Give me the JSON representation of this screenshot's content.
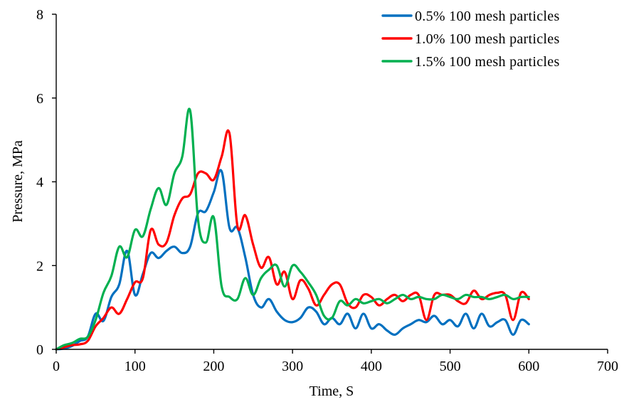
{
  "chart_data": {
    "type": "line",
    "title": "",
    "xlabel": "Time,  S",
    "ylabel": "Pressure, MPa",
    "xlim": [
      0,
      700
    ],
    "ylim": [
      0,
      8
    ],
    "xticks": [
      0,
      100,
      200,
      300,
      400,
      500,
      600,
      700
    ],
    "yticks": [
      0,
      2,
      4,
      6,
      8
    ],
    "grid": false,
    "legend_position": "top-right",
    "series": [
      {
        "name": "0.5% 100 mesh particles",
        "color": "#0070C0",
        "x": [
          0,
          10,
          20,
          30,
          40,
          50,
          60,
          70,
          80,
          90,
          100,
          110,
          120,
          130,
          140,
          150,
          160,
          170,
          180,
          190,
          200,
          210,
          220,
          230,
          240,
          250,
          260,
          270,
          280,
          290,
          300,
          310,
          320,
          330,
          340,
          350,
          360,
          370,
          380,
          390,
          400,
          410,
          420,
          430,
          440,
          450,
          460,
          470,
          480,
          490,
          500,
          510,
          520,
          530,
          540,
          550,
          560,
          570,
          580,
          590,
          600
        ],
        "y": [
          0.0,
          0.02,
          0.08,
          0.2,
          0.3,
          0.85,
          0.68,
          1.25,
          1.55,
          2.35,
          1.3,
          1.8,
          2.3,
          2.18,
          2.35,
          2.45,
          2.3,
          2.45,
          3.25,
          3.3,
          3.75,
          4.25,
          2.9,
          2.9,
          2.2,
          1.3,
          1.0,
          1.2,
          0.9,
          0.7,
          0.65,
          0.75,
          1.0,
          0.9,
          0.6,
          0.75,
          0.6,
          0.85,
          0.5,
          0.85,
          0.5,
          0.6,
          0.45,
          0.35,
          0.5,
          0.6,
          0.7,
          0.65,
          0.8,
          0.6,
          0.7,
          0.55,
          0.85,
          0.5,
          0.85,
          0.55,
          0.65,
          0.7,
          0.35,
          0.7,
          0.6
        ]
      },
      {
        "name": "1.0% 100 mesh particles",
        "color": "#FF0000",
        "x": [
          0,
          10,
          20,
          30,
          40,
          50,
          60,
          70,
          80,
          90,
          100,
          110,
          120,
          130,
          140,
          150,
          160,
          170,
          180,
          190,
          200,
          210,
          220,
          230,
          240,
          250,
          260,
          270,
          280,
          290,
          300,
          310,
          320,
          330,
          340,
          350,
          360,
          370,
          380,
          390,
          400,
          410,
          420,
          430,
          440,
          450,
          460,
          470,
          480,
          490,
          500,
          510,
          520,
          530,
          540,
          550,
          560,
          570,
          580,
          590,
          600
        ],
        "y": [
          0.0,
          0.05,
          0.1,
          0.12,
          0.2,
          0.55,
          0.75,
          1.0,
          0.85,
          1.2,
          1.6,
          1.7,
          2.85,
          2.5,
          2.55,
          3.2,
          3.6,
          3.7,
          4.2,
          4.2,
          4.05,
          4.6,
          5.15,
          2.95,
          3.2,
          2.5,
          1.95,
          2.2,
          1.55,
          1.85,
          1.2,
          1.65,
          1.45,
          1.05,
          1.3,
          1.55,
          1.55,
          1.1,
          1.0,
          1.3,
          1.25,
          1.05,
          1.2,
          1.3,
          1.15,
          1.3,
          1.3,
          0.7,
          1.3,
          1.3,
          1.3,
          1.15,
          1.1,
          1.4,
          1.2,
          1.3,
          1.35,
          1.3,
          0.7,
          1.35,
          1.2
        ]
      },
      {
        "name": "1.5% 100 mesh particles",
        "color": "#00B050",
        "x": [
          0,
          10,
          20,
          30,
          40,
          50,
          60,
          70,
          80,
          90,
          100,
          110,
          120,
          130,
          140,
          150,
          160,
          170,
          180,
          190,
          200,
          210,
          220,
          230,
          240,
          250,
          260,
          270,
          280,
          290,
          300,
          310,
          320,
          330,
          340,
          350,
          360,
          370,
          380,
          390,
          400,
          410,
          420,
          430,
          440,
          450,
          460,
          470,
          480,
          490,
          500,
          510,
          520,
          530,
          540,
          550,
          560,
          570,
          580,
          590,
          600
        ],
        "y": [
          0.0,
          0.1,
          0.15,
          0.25,
          0.3,
          0.7,
          1.35,
          1.75,
          2.45,
          2.2,
          2.85,
          2.7,
          3.35,
          3.85,
          3.45,
          4.2,
          4.6,
          5.7,
          3.1,
          2.55,
          3.15,
          1.5,
          1.25,
          1.2,
          1.7,
          1.3,
          1.7,
          1.9,
          2.0,
          1.5,
          2.0,
          1.85,
          1.6,
          1.3,
          0.8,
          0.75,
          1.15,
          1.05,
          1.2,
          1.1,
          1.15,
          1.2,
          1.1,
          1.2,
          1.3,
          1.2,
          1.25,
          1.2,
          1.2,
          1.3,
          1.25,
          1.2,
          1.3,
          1.25,
          1.25,
          1.2,
          1.25,
          1.3,
          1.2,
          1.25,
          1.25
        ]
      }
    ]
  }
}
